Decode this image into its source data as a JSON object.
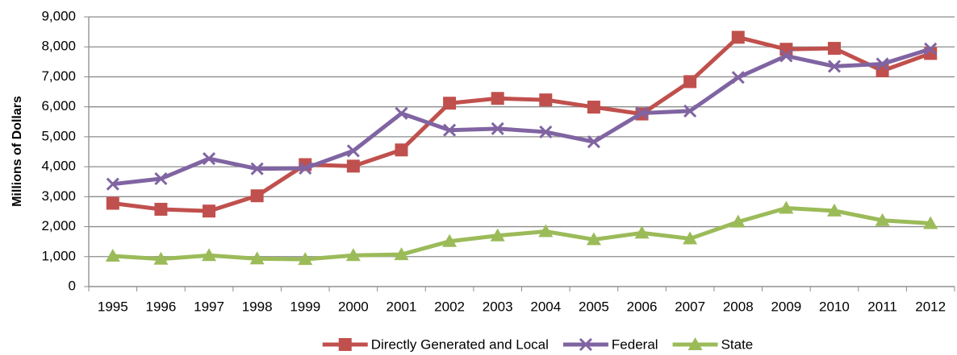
{
  "chart_data": {
    "type": "line",
    "y_label": "Millions of Dollars",
    "categories": [
      "1995",
      "1996",
      "1997",
      "1998",
      "1999",
      "2000",
      "2001",
      "2002",
      "2003",
      "2004",
      "2005",
      "2006",
      "2007",
      "2008",
      "2009",
      "2010",
      "2011",
      "2012"
    ],
    "series": [
      {
        "name": "Directly Generated and Local",
        "color": "#c0504d",
        "marker": "square",
        "values": [
          2780,
          2580,
          2520,
          3030,
          4070,
          4020,
          4560,
          6120,
          6280,
          6230,
          5990,
          5760,
          6840,
          8320,
          7920,
          7950,
          7200,
          7780
        ]
      },
      {
        "name": "Federal",
        "color": "#8064a2",
        "marker": "x",
        "values": [
          3420,
          3600,
          4270,
          3930,
          3950,
          4530,
          5780,
          5220,
          5270,
          5160,
          4830,
          5790,
          5860,
          6980,
          7700,
          7350,
          7430,
          7930
        ]
      },
      {
        "name": "State",
        "color": "#9bbb59",
        "marker": "triangle",
        "values": [
          1020,
          920,
          1040,
          930,
          910,
          1040,
          1070,
          1510,
          1700,
          1840,
          1570,
          1790,
          1600,
          2160,
          2620,
          2530,
          2210,
          2110
        ]
      }
    ],
    "ylim": [
      0,
      9000
    ],
    "yticks": [
      0,
      {
        "value": 1000,
        "label": "1,000"
      },
      {
        "value": 2000,
        "label": "2,000"
      },
      {
        "value": 3000,
        "label": "3,000"
      },
      {
        "value": 4000,
        "label": "4,000"
      },
      {
        "value": 5000,
        "label": "5,000"
      },
      {
        "value": 6000,
        "label": "6,000"
      },
      {
        "value": 7000,
        "label": "7,000"
      },
      {
        "value": 8000,
        "label": "8,000"
      },
      {
        "value": 9000,
        "label": "9,000"
      }
    ],
    "grid": true,
    "legend": "bottom"
  }
}
